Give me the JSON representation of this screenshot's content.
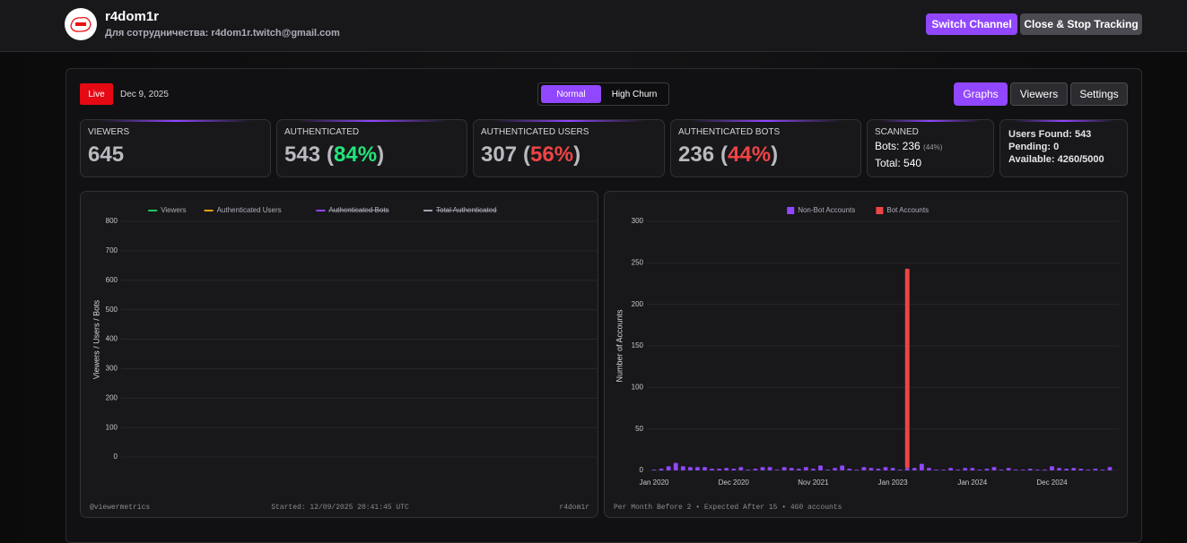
{
  "header": {
    "channel": "r4dom1r",
    "contact": "Для сотрудничества: r4dom1r.twitch@gmail.com",
    "actions": [
      "Switch Channel",
      "Close & Stop Tracking"
    ]
  },
  "toolbar": {
    "status": "Live",
    "date": "Dec 9, 2025",
    "modes": [
      "Normal",
      "High Churn"
    ],
    "active_mode": 0,
    "tabs": [
      "Graphs",
      "Viewers",
      "Settings"
    ],
    "active_tab": 0
  },
  "stats": [
    {
      "label": "VIEWERS",
      "value": 645
    },
    {
      "label": "AUTHENTICATED",
      "value": 543,
      "share": [
        "(",
        "84%",
        ")"
      ],
      "share_color": "#22e57a"
    },
    {
      "label": "AUTHENTICATED USERS",
      "value": 307,
      "share": [
        "(",
        "56%",
        ")"
      ],
      "share_color": "#ef4444"
    },
    {
      "label": "AUTHENTICATED BOTS",
      "value": 236,
      "share": [
        "(",
        "44%",
        ")"
      ],
      "share_color": "#ef4444"
    }
  ],
  "scanned": {
    "label": "SCANNED",
    "bots": "Bots: 236",
    "bots_share": "(44%)",
    "total": "Total: 540"
  },
  "capacity": [
    "Users Found: 543",
    "Pending: 0",
    "Available: 4260/5000"
  ],
  "chart_data": [
    {
      "type": "line",
      "x": [],
      "series": [
        {
          "name": "Viewers",
          "color": "#22c55e",
          "values": []
        },
        {
          "name": "Authenticated Users",
          "color": "#f59e0b",
          "values": []
        },
        {
          "name": "Authenticated Bots",
          "color": "#9147ff",
          "values": [],
          "hidden": true
        },
        {
          "name": "Total Authenticated",
          "color": "#9ca3af",
          "values": [],
          "hidden": true
        }
      ],
      "ylim": [
        -100,
        800
      ],
      "yticks": [
        0,
        100,
        200,
        300,
        400,
        500,
        600,
        700,
        800
      ],
      "ylabel": "Viewers / Users / Bots",
      "grid": true,
      "footer": [
        "@viewermetrics",
        "Started: 12/09/2025 20:41:45 UTC",
        "r4dom1r"
      ]
    },
    {
      "type": "bar",
      "stacked": true,
      "categories": [
        "Jan 2020",
        null,
        null,
        null,
        null,
        null,
        null,
        null,
        null,
        null,
        null,
        "Dec 2020",
        null,
        null,
        null,
        null,
        null,
        null,
        null,
        null,
        null,
        null,
        "Nov 2021",
        null,
        null,
        null,
        null,
        null,
        null,
        null,
        null,
        null,
        null,
        "Jan 2023",
        null,
        null,
        null,
        null,
        null,
        null,
        null,
        null,
        null,
        null,
        "Jan 2024",
        null,
        null,
        null,
        null,
        null,
        null,
        null,
        null,
        null,
        null,
        "Dec 2024",
        null,
        null,
        null,
        null,
        null,
        null,
        null,
        null
      ],
      "series": [
        {
          "name": "Non-Bot Accounts",
          "color": "#9147ff",
          "values": [
            1,
            2,
            5,
            9,
            5,
            4,
            4,
            4,
            2,
            2,
            3,
            2,
            4,
            1,
            2,
            4,
            4,
            1,
            4,
            3,
            2,
            4,
            2,
            6,
            1,
            3,
            6,
            2,
            1,
            4,
            3,
            2,
            4,
            3,
            1,
            3,
            3,
            8,
            3,
            1,
            1,
            3,
            1,
            3,
            3,
            1,
            2,
            4,
            1,
            3,
            1,
            1,
            2,
            1,
            1,
            5,
            3,
            2,
            3,
            2,
            1,
            2,
            1,
            4
          ]
        },
        {
          "name": "Bot Accounts",
          "color": "#ef4444",
          "values": [
            null,
            null,
            null,
            null,
            null,
            null,
            null,
            null,
            null,
            null,
            null,
            null,
            null,
            null,
            null,
            null,
            null,
            null,
            null,
            null,
            null,
            null,
            null,
            null,
            null,
            null,
            null,
            null,
            null,
            null,
            null,
            null,
            null,
            null,
            null,
            240,
            null,
            null,
            null,
            null,
            null,
            null,
            null,
            null,
            null,
            null,
            null,
            null,
            null,
            null,
            null,
            null,
            null,
            null,
            null,
            null,
            null,
            null,
            null,
            null,
            null,
            null,
            null,
            null
          ]
        }
      ],
      "ylim": [
        0,
        300
      ],
      "yticks": [
        0,
        50,
        100,
        150,
        200,
        250,
        300
      ],
      "ylabel": "Number of Accounts",
      "grid": true,
      "footer": "Per Month Before 2 • Expected After 15 • 460 accounts"
    }
  ]
}
